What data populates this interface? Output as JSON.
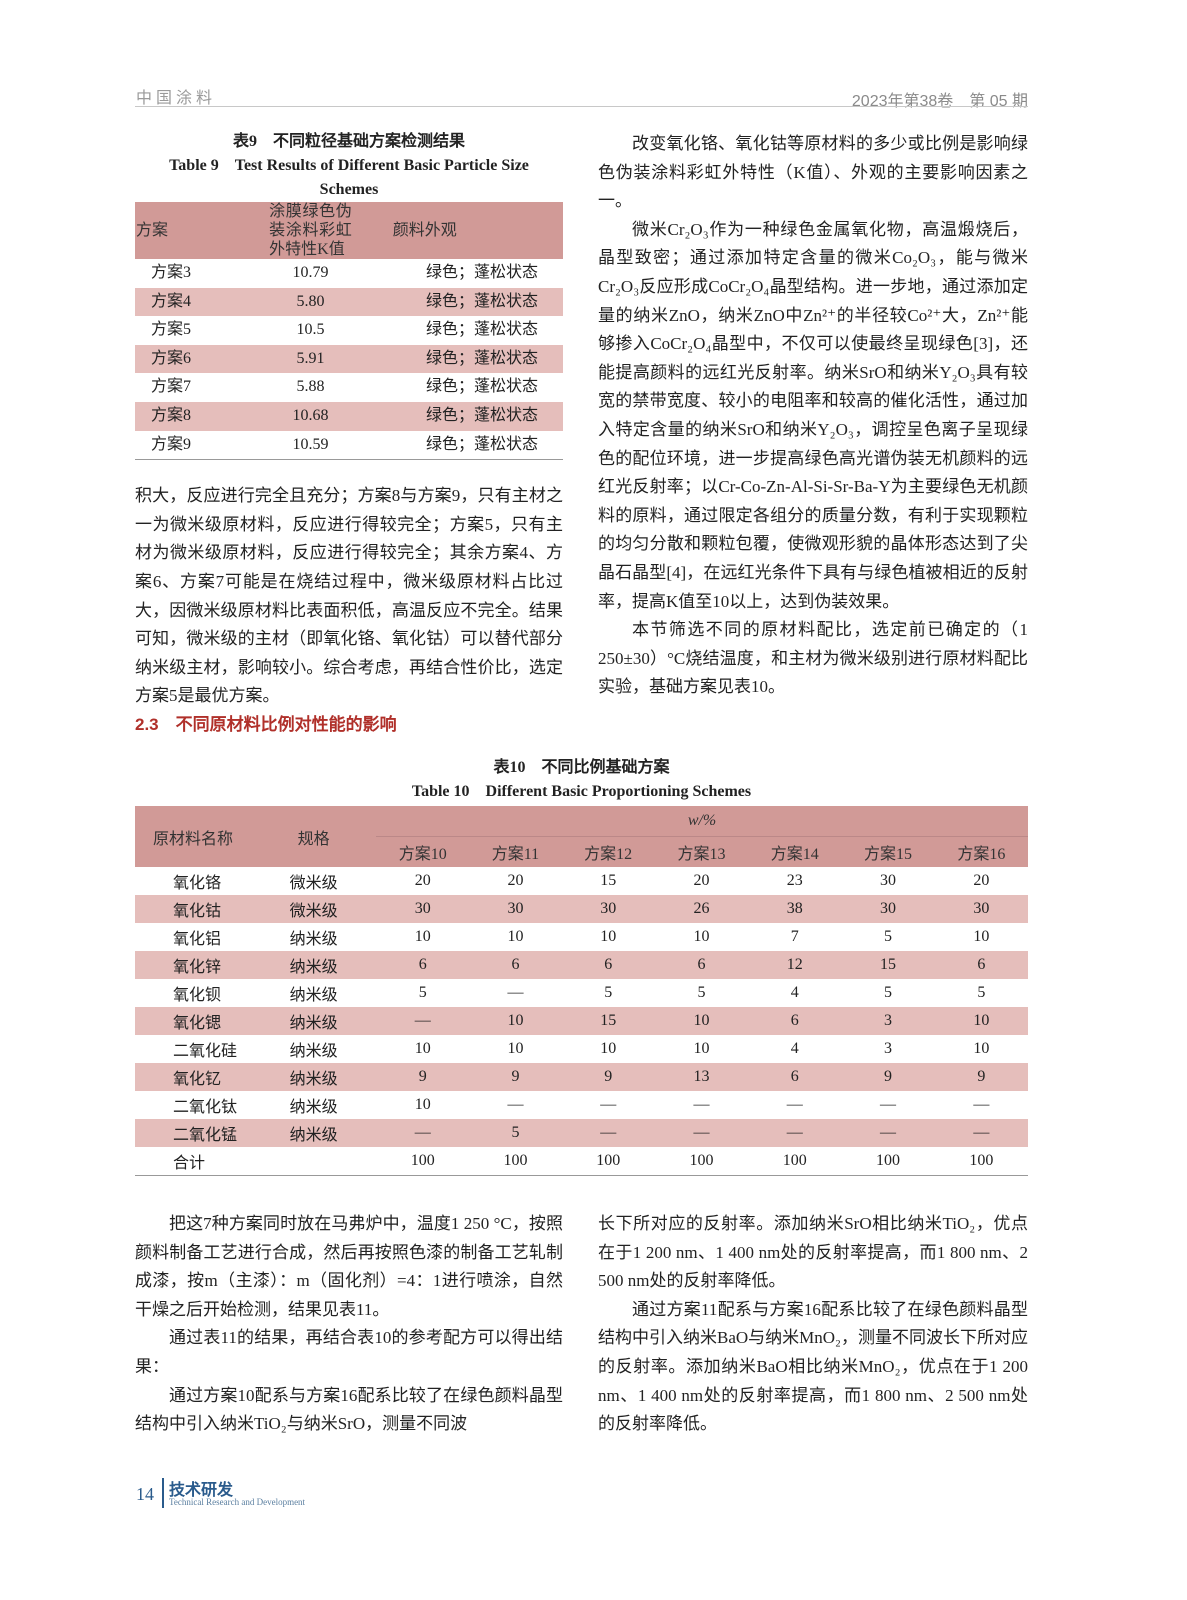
{
  "header": {
    "journal": "中国涂料",
    "issue": "2023年第38卷　第 05 期"
  },
  "table9": {
    "caption_cn": "表9　不同粒径基础方案检测结果",
    "caption_en": "Table 9　Test Results of Different Basic Particle Size Schemes",
    "headers": [
      "方案",
      "涂膜绿色伪装涂料彩虹外特性K值",
      "颜料外观"
    ],
    "rows": [
      [
        "方案3",
        "10.79",
        "绿色；蓬松状态"
      ],
      [
        "方案4",
        "5.80",
        "绿色；蓬松状态"
      ],
      [
        "方案5",
        "10.5",
        "绿色；蓬松状态"
      ],
      [
        "方案6",
        "5.91",
        "绿色；蓬松状态"
      ],
      [
        "方案7",
        "5.88",
        "绿色；蓬松状态"
      ],
      [
        "方案8",
        "10.68",
        "绿色；蓬松状态"
      ],
      [
        "方案9",
        "10.59",
        "绿色；蓬松状态"
      ]
    ]
  },
  "left_column": {
    "para1": "积大，反应进行完全且充分；方案8与方案9，只有主材之一为微米级原材料，反应进行得较完全；方案5，只有主材为微米级原材料，反应进行得较完全；其余方案4、方案6、方案7可能是在烧结过程中，微米级原材料占比过大，因微米级原材料比表面积低，高温反应不完全。结果可知，微米级的主材（即氧化铬、氧化钴）可以替代部分纳米级主材，影响较小。综合考虑，再结合性价比，选定方案5是最优方案。",
    "section_heading": "2.3　不同原材料比例对性能的影响"
  },
  "right_column": {
    "para1": "改变氧化铬、氧化钴等原材料的多少或比例是影响绿色伪装涂料彩虹外特性（K值）、外观的主要影响因素之一。",
    "para2": "微米Cr₂O₃作为一种绿色金属氧化物，高温煅烧后，晶型致密；通过添加特定含量的微米Co₂O₃，能与微米Cr₂O₃反应形成CoCr₂O₄晶型结构。进一步地，通过添加定量的纳米ZnO，纳米ZnO中Zn²⁺的半径较Co²⁺大，Zn²⁺能够掺入CoCr₂O₄晶型中，不仅可以使最终呈现绿色[3]，还能提高颜料的远红光反射率。纳米SrO和纳米Y₂O₃具有较宽的禁带宽度、较小的电阻率和较高的催化活性，通过加入特定含量的纳米SrO和纳米Y₂O₃，调控呈色离子呈现绿色的配位环境，进一步提高绿色高光谱伪装无机颜料的远红光反射率；以Cr-Co-Zn-Al-Si-Sr-Ba-Y为主要绿色无机颜料的原料，通过限定各组分的质量分数，有利于实现颗粒的均匀分散和颗粒包覆，使微观形貌的晶体形态达到了尖晶石晶型[4]，在远红光条件下具有与绿色植被相近的反射率，提高K值至10以上，达到伪装效果。",
    "para3": "本节筛选不同的原材料配比，选定前已确定的（1 250±30）°C烧结温度，和主材为微米级别进行原材料配比实验，基础方案见表10。"
  },
  "table10": {
    "caption_cn": "表10　不同比例基础方案",
    "caption_en": "Table 10　Different Basic Proportioning Schemes",
    "col_name": "原材料名称",
    "col_spec": "规格",
    "unit": "w/%",
    "schemes": [
      "方案10",
      "方案11",
      "方案12",
      "方案13",
      "方案14",
      "方案15",
      "方案16"
    ],
    "rows": [
      {
        "name": "氧化铬",
        "spec": "微米级",
        "values": [
          "20",
          "20",
          "15",
          "20",
          "23",
          "30",
          "20"
        ]
      },
      {
        "name": "氧化钴",
        "spec": "微米级",
        "values": [
          "30",
          "30",
          "30",
          "26",
          "38",
          "30",
          "30"
        ]
      },
      {
        "name": "氧化铝",
        "spec": "纳米级",
        "values": [
          "10",
          "10",
          "10",
          "10",
          "7",
          "5",
          "10"
        ]
      },
      {
        "name": "氧化锌",
        "spec": "纳米级",
        "values": [
          "6",
          "6",
          "6",
          "6",
          "12",
          "15",
          "6"
        ]
      },
      {
        "name": "氧化钡",
        "spec": "纳米级",
        "values": [
          "5",
          "—",
          "5",
          "5",
          "4",
          "5",
          "5"
        ]
      },
      {
        "name": "氧化锶",
        "spec": "纳米级",
        "values": [
          "—",
          "10",
          "15",
          "10",
          "6",
          "3",
          "10"
        ]
      },
      {
        "name": "二氧化硅",
        "spec": "纳米级",
        "values": [
          "10",
          "10",
          "10",
          "10",
          "4",
          "3",
          "10"
        ]
      },
      {
        "name": "氧化钇",
        "spec": "纳米级",
        "values": [
          "9",
          "9",
          "9",
          "13",
          "6",
          "9",
          "9"
        ]
      },
      {
        "name": "二氧化钛",
        "spec": "纳米级",
        "values": [
          "10",
          "—",
          "—",
          "—",
          "—",
          "—",
          "—"
        ]
      },
      {
        "name": "二氧化锰",
        "spec": "纳米级",
        "values": [
          "—",
          "5",
          "—",
          "—",
          "—",
          "—",
          "—"
        ]
      }
    ],
    "total": {
      "name": "合计",
      "values": [
        "100",
        "100",
        "100",
        "100",
        "100",
        "100",
        "100"
      ]
    }
  },
  "bottom_left": {
    "para1": "把这7种方案同时放在马弗炉中，温度1 250 °C，按照颜料制备工艺进行合成，然后再按照色漆的制备工艺轧制成漆，按m（主漆）：m（固化剂）=4：1进行喷涂，自然干燥之后开始检测，结果见表11。",
    "para2": "通过表11的结果，再结合表10的参考配方可以得出结果：",
    "para3": "通过方案10配系与方案16配系比较了在绿色颜料晶型结构中引入纳米TiO₂与纳米SrO，测量不同波"
  },
  "bottom_right": {
    "para1": "长下所对应的反射率。添加纳米SrO相比纳米TiO₂，优点在于1 200 nm、1 400 nm处的反射率提高，而1 800 nm、2 500 nm处的反射率降低。",
    "para2": "通过方案11配系与方案16配系比较了在绿色颜料晶型结构中引入纳米BaO与纳米MnO₂，测量不同波长下所对应的反射率。添加纳米BaO相比纳米MnO₂，优点在于1 200 nm、1 400 nm处的反射率提高，而1 800 nm、2 500 nm处的反射率降低。"
  },
  "footer": {
    "page_number": "14",
    "section_cn": "技术研发",
    "section_en": "Technical Research and Development",
    "accent_color": "#2a5b8c"
  },
  "colors": {
    "table_header": "#d19a97",
    "table_stripe": "#e5bebb",
    "section_heading": "#b0302a"
  }
}
